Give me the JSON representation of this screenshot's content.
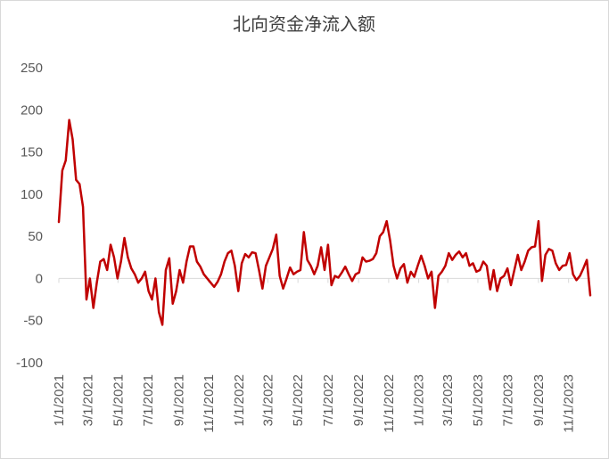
{
  "chart_data": {
    "type": "line",
    "title": "北向资金净流入额",
    "x": [
      "2021-01-01",
      "2021-01-08",
      "2021-01-15",
      "2021-01-22",
      "2021-01-29",
      "2021-02-05",
      "2021-02-12",
      "2021-02-19",
      "2021-02-26",
      "2021-03-05",
      "2021-03-12",
      "2021-03-19",
      "2021-03-26",
      "2021-04-02",
      "2021-04-09",
      "2021-04-16",
      "2021-04-23",
      "2021-04-30",
      "2021-05-07",
      "2021-05-14",
      "2021-05-21",
      "2021-05-28",
      "2021-06-04",
      "2021-06-11",
      "2021-06-18",
      "2021-06-25",
      "2021-07-02",
      "2021-07-09",
      "2021-07-16",
      "2021-07-23",
      "2021-07-30",
      "2021-08-06",
      "2021-08-13",
      "2021-08-20",
      "2021-08-27",
      "2021-09-03",
      "2021-09-10",
      "2021-09-17",
      "2021-09-24",
      "2021-10-01",
      "2021-10-08",
      "2021-10-15",
      "2021-10-22",
      "2021-10-29",
      "2021-11-05",
      "2021-11-12",
      "2021-11-19",
      "2021-11-26",
      "2021-12-03",
      "2021-12-10",
      "2021-12-17",
      "2021-12-24",
      "2021-12-31",
      "2022-01-07",
      "2022-01-14",
      "2022-01-21",
      "2022-01-28",
      "2022-02-04",
      "2022-02-11",
      "2022-02-18",
      "2022-02-25",
      "2022-03-04",
      "2022-03-11",
      "2022-03-18",
      "2022-03-25",
      "2022-04-01",
      "2022-04-08",
      "2022-04-15",
      "2022-04-22",
      "2022-04-29",
      "2022-05-06",
      "2022-05-13",
      "2022-05-20",
      "2022-05-27",
      "2022-06-03",
      "2022-06-10",
      "2022-06-17",
      "2022-06-24",
      "2022-07-01",
      "2022-07-08",
      "2022-07-15",
      "2022-07-22",
      "2022-07-29",
      "2022-08-05",
      "2022-08-12",
      "2022-08-19",
      "2022-08-26",
      "2022-09-02",
      "2022-09-09",
      "2022-09-16",
      "2022-09-23",
      "2022-09-30",
      "2022-10-07",
      "2022-10-14",
      "2022-10-21",
      "2022-10-28",
      "2022-11-04",
      "2022-11-11",
      "2022-11-18",
      "2022-11-25",
      "2022-12-02",
      "2022-12-09",
      "2022-12-16",
      "2022-12-23",
      "2022-12-30",
      "2023-01-06",
      "2023-01-13",
      "2023-01-20",
      "2023-01-27",
      "2023-02-03",
      "2023-02-10",
      "2023-02-17",
      "2023-02-24",
      "2023-03-03",
      "2023-03-10",
      "2023-03-17",
      "2023-03-24",
      "2023-03-31",
      "2023-04-07",
      "2023-04-14",
      "2023-04-21",
      "2023-04-28",
      "2023-05-05",
      "2023-05-12",
      "2023-05-19",
      "2023-05-26",
      "2023-06-02",
      "2023-06-09",
      "2023-06-16",
      "2023-06-23",
      "2023-06-30",
      "2023-07-07",
      "2023-07-14",
      "2023-07-21",
      "2023-07-28",
      "2023-08-04",
      "2023-08-11",
      "2023-08-18",
      "2023-08-25",
      "2023-09-01",
      "2023-09-08",
      "2023-09-15",
      "2023-09-22",
      "2023-09-29",
      "2023-10-06",
      "2023-10-13",
      "2023-10-20",
      "2023-10-27",
      "2023-11-03",
      "2023-11-10",
      "2023-11-17",
      "2023-11-24",
      "2023-12-01",
      "2023-12-08",
      "2023-12-15"
    ],
    "series": [
      {
        "color": "#c00000",
        "values": [
          67,
          128,
          140,
          188,
          165,
          117,
          112,
          85,
          -25,
          0,
          -35,
          -5,
          20,
          23,
          10,
          40,
          25,
          0,
          20,
          48,
          25,
          12,
          5,
          -5,
          0,
          8,
          -15,
          -25,
          0,
          -40,
          -55,
          10,
          24,
          -30,
          -15,
          10,
          -5,
          20,
          38,
          38,
          20,
          14,
          5,
          0,
          -5,
          -10,
          -4,
          5,
          20,
          30,
          33,
          15,
          -15,
          18,
          29,
          25,
          31,
          30,
          10,
          -12,
          15,
          25,
          35,
          52,
          3,
          -12,
          0,
          13,
          5,
          8,
          10,
          55,
          22,
          15,
          5,
          15,
          37,
          10,
          40,
          -8,
          3,
          1,
          7,
          14,
          5,
          -3,
          5,
          7,
          25,
          20,
          21,
          23,
          30,
          50,
          55,
          68,
          45,
          15,
          0,
          12,
          17,
          -5,
          8,
          2,
          15,
          27,
          15,
          0,
          8,
          -35,
          3,
          8,
          15,
          30,
          22,
          28,
          32,
          25,
          30,
          15,
          18,
          8,
          10,
          20,
          15,
          -13,
          10,
          -15,
          0,
          3,
          12,
          -8,
          10,
          28,
          10,
          20,
          33,
          37,
          38,
          68,
          -3,
          28,
          35,
          33,
          18,
          10,
          15,
          16,
          30,
          5,
          -2,
          3,
          12,
          22,
          -20
        ]
      }
    ],
    "xlim": [
      "2021-01-01",
      "2023-12-15"
    ],
    "xticks": [
      {
        "value": "2021-01-01",
        "label": "1/1/2021"
      },
      {
        "value": "2021-03-01",
        "label": "3/1/2021"
      },
      {
        "value": "2021-05-01",
        "label": "5/1/2021"
      },
      {
        "value": "2021-07-01",
        "label": "7/1/2021"
      },
      {
        "value": "2021-09-01",
        "label": "9/1/2021"
      },
      {
        "value": "2021-11-01",
        "label": "11/1/2021"
      },
      {
        "value": "2022-01-01",
        "label": "1/1/2022"
      },
      {
        "value": "2022-03-01",
        "label": "3/1/2022"
      },
      {
        "value": "2022-05-01",
        "label": "5/1/2022"
      },
      {
        "value": "2022-07-01",
        "label": "7/1/2022"
      },
      {
        "value": "2022-09-01",
        "label": "9/1/2022"
      },
      {
        "value": "2022-11-01",
        "label": "11/1/2022"
      },
      {
        "value": "2023-01-01",
        "label": "1/1/2023"
      },
      {
        "value": "2023-03-01",
        "label": "3/1/2023"
      },
      {
        "value": "2023-05-01",
        "label": "5/1/2023"
      },
      {
        "value": "2023-07-01",
        "label": "7/1/2023"
      },
      {
        "value": "2023-09-01",
        "label": "9/1/2023"
      },
      {
        "value": "2023-11-01",
        "label": "11/1/2023"
      }
    ],
    "ylim": [
      -100,
      250
    ],
    "yticks": [
      -100,
      -50,
      0,
      50,
      100,
      150,
      200,
      250
    ],
    "grid": false
  }
}
